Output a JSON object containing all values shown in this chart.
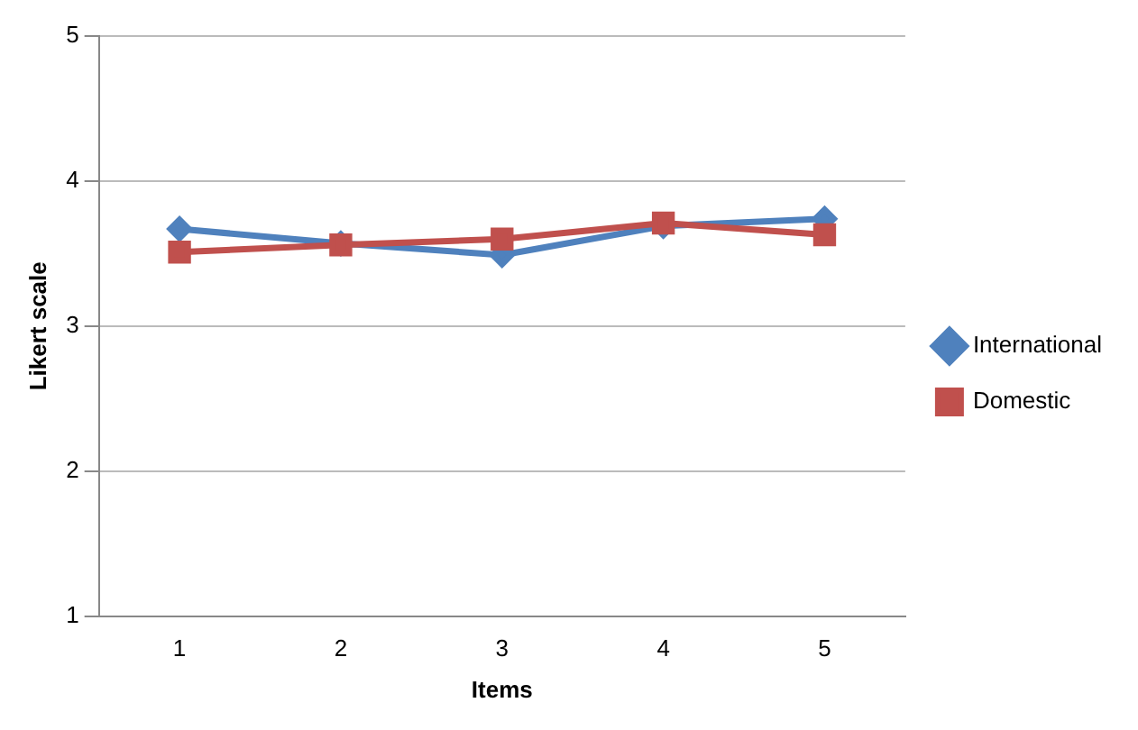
{
  "chart_data": {
    "type": "line",
    "xlabel": "Items",
    "ylabel": "Likert scale",
    "categories": [
      "1",
      "2",
      "3",
      "4",
      "5"
    ],
    "series": [
      {
        "name": "International",
        "color": "#4f81bd",
        "marker": "diamond",
        "values": [
          3.67,
          3.57,
          3.49,
          3.69,
          3.74
        ]
      },
      {
        "name": "Domestic",
        "color": "#c0504d",
        "marker": "square",
        "values": [
          3.51,
          3.56,
          3.6,
          3.71,
          3.63
        ]
      }
    ],
    "ylim": [
      1,
      5
    ],
    "yticks": [
      1,
      2,
      3,
      4,
      5
    ],
    "grid": "y",
    "legend": "right",
    "line_style": "solid"
  }
}
